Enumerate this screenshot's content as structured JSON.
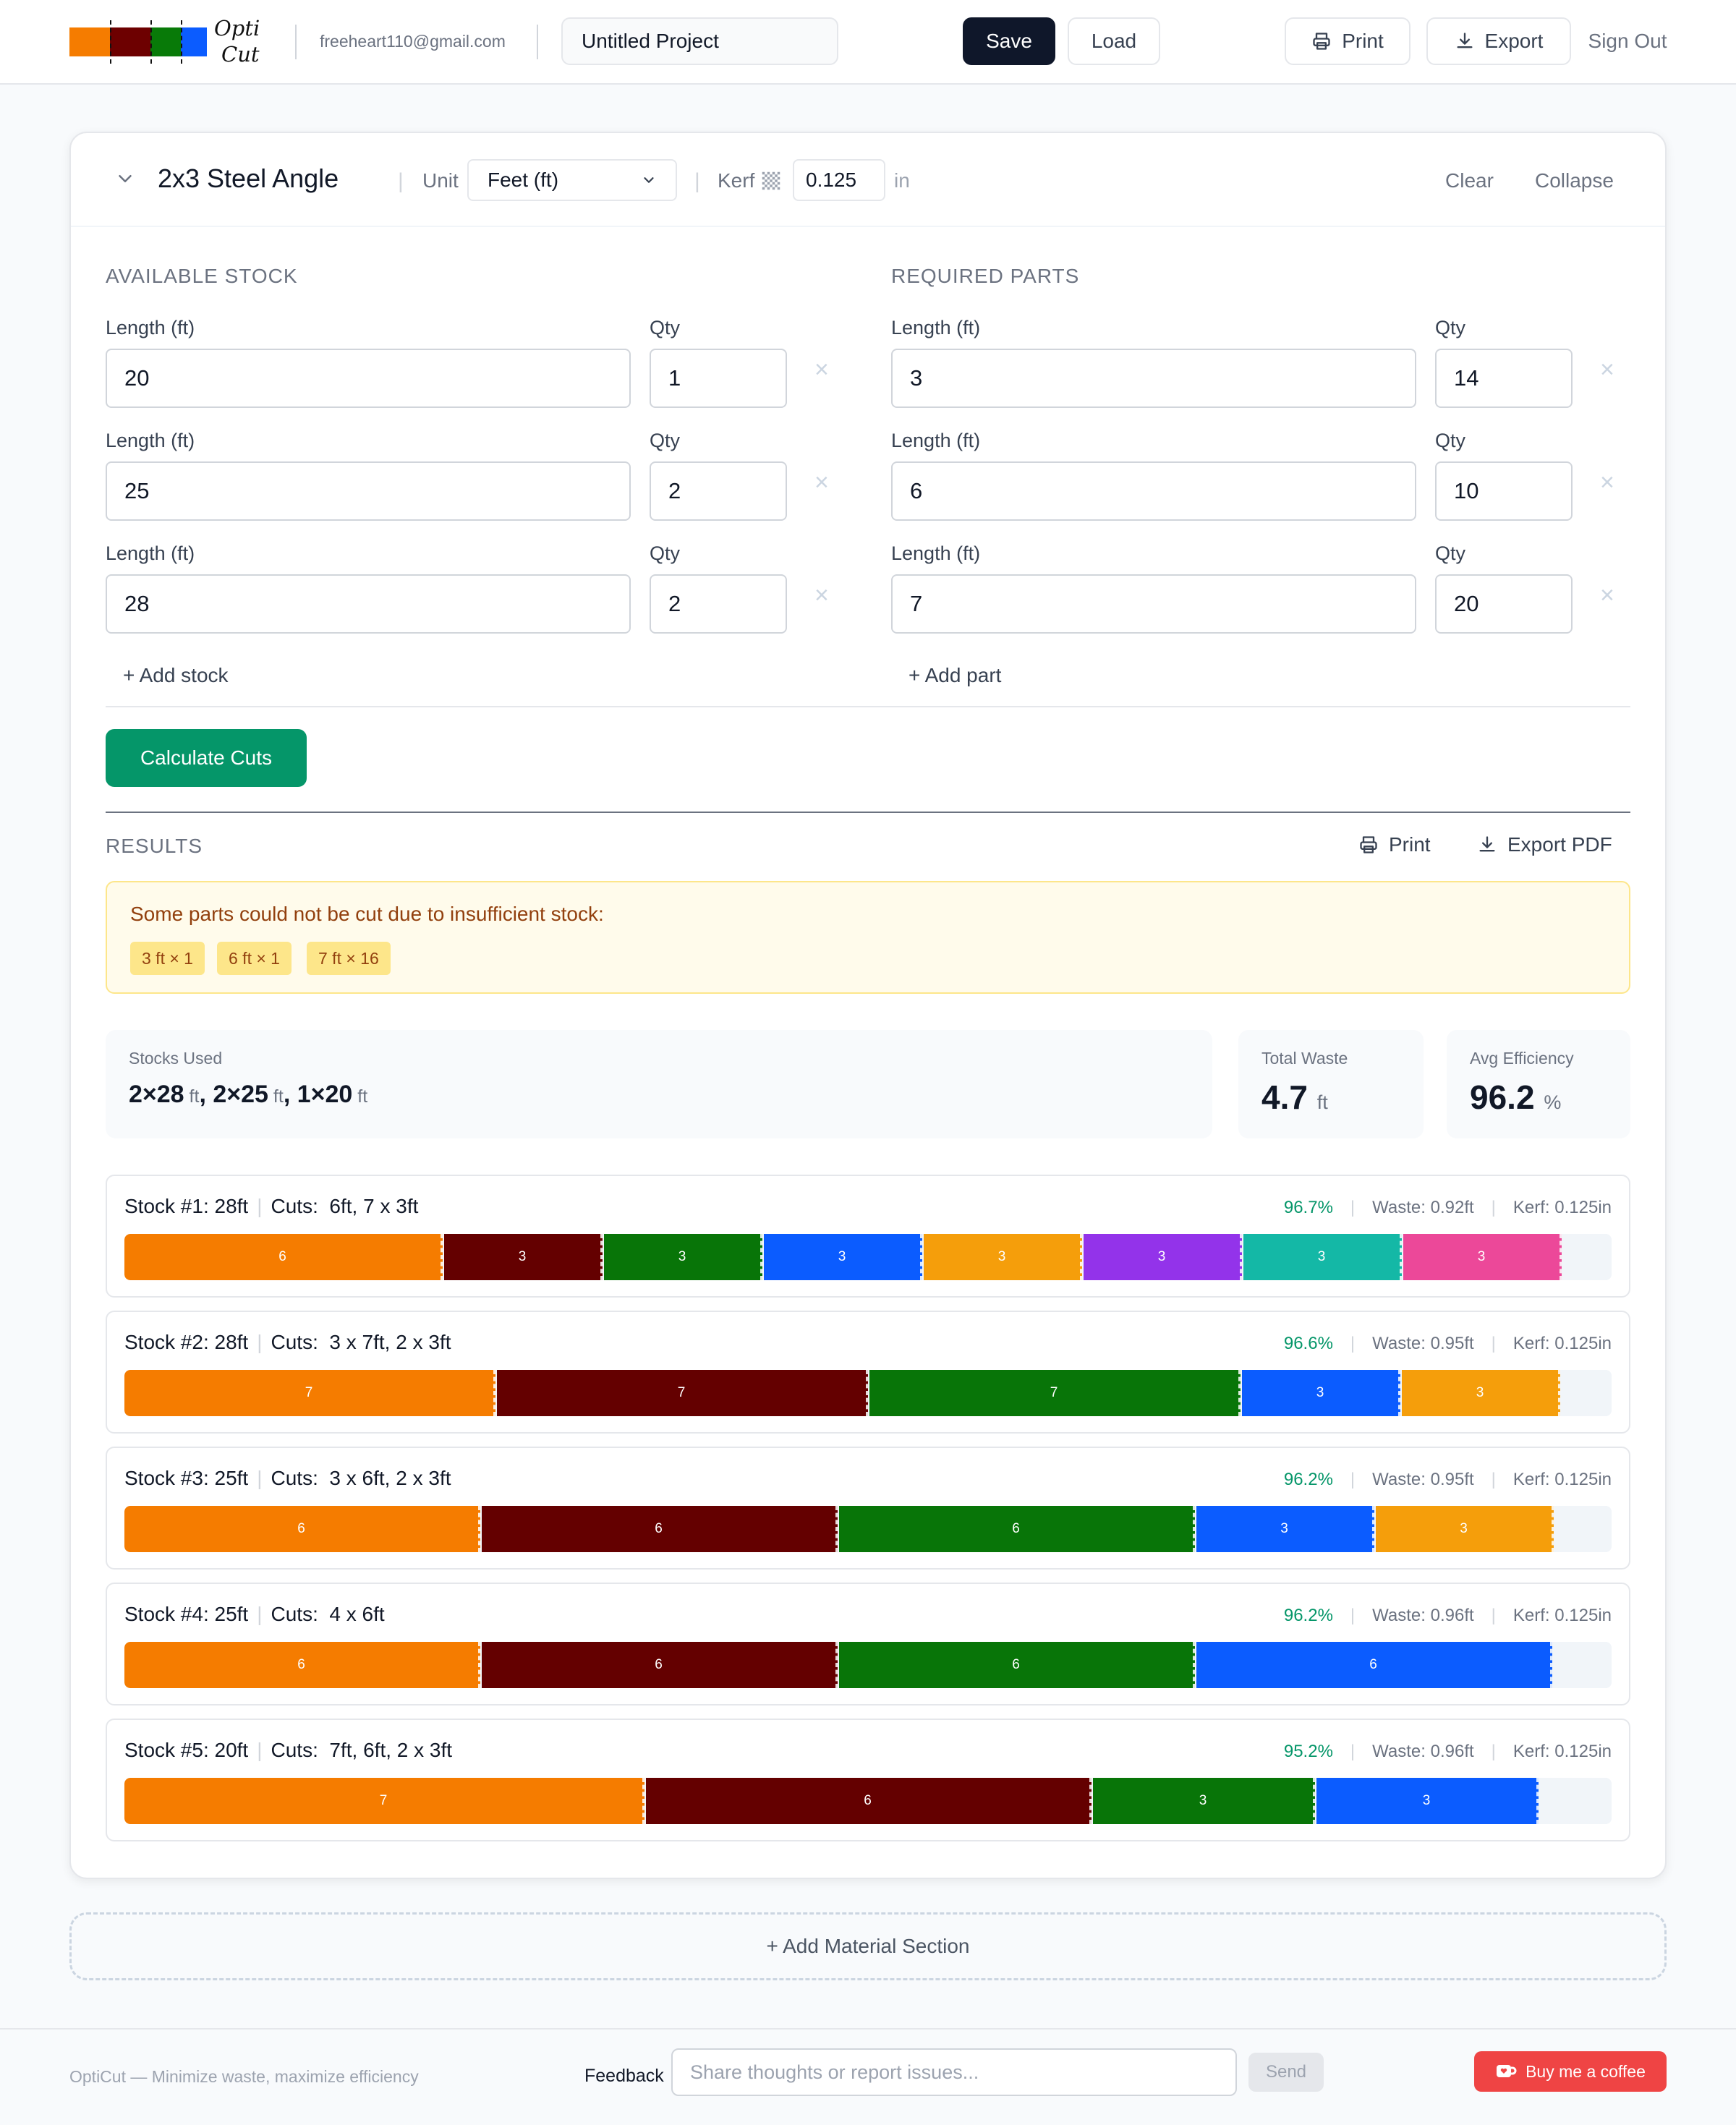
{
  "brand": {
    "name_line1": "Opti",
    "name_line2": "Cut",
    "bar_colors": [
      "#f57c00",
      "#6d0000",
      "#087a08",
      "#0b5cff"
    ]
  },
  "header": {
    "user_email": "freeheart110@gmail.com",
    "project_name": "Untitled Project",
    "save_label": "Save",
    "load_label": "Load",
    "print_label": "Print",
    "export_label": "Export",
    "signout_label": "Sign Out"
  },
  "material": {
    "title": "2x3 Steel Angle",
    "unit_label": "Unit",
    "unit_value": "Feet (ft)",
    "kerf_label": "Kerf",
    "kerf_value": "0.125",
    "kerf_unit": "in",
    "clear_label": "Clear",
    "collapse_label": "Collapse"
  },
  "stock": {
    "title": "AVAILABLE STOCK",
    "length_label": "Length (ft)",
    "qty_label": "Qty",
    "add_label": "+ Add stock",
    "items": [
      {
        "length": "20",
        "qty": "1"
      },
      {
        "length": "25",
        "qty": "2"
      },
      {
        "length": "28",
        "qty": "2"
      }
    ]
  },
  "parts": {
    "title": "REQUIRED PARTS",
    "length_label": "Length (ft)",
    "qty_label": "Qty",
    "add_label": "+ Add part",
    "items": [
      {
        "length": "3",
        "qty": "14"
      },
      {
        "length": "6",
        "qty": "10"
      },
      {
        "length": "7",
        "qty": "20"
      }
    ]
  },
  "calculate_label": "Calculate Cuts",
  "results": {
    "title": "RESULTS",
    "print_label": "Print",
    "export_pdf_label": "Export PDF",
    "warning": {
      "text": "Some parts could not be cut due to insufficient stock:",
      "chips": [
        "3 ft × 1",
        "6 ft × 1",
        "7 ft × 16"
      ]
    },
    "stats": {
      "stocks_used_label": "Stocks Used",
      "stocks_used": [
        {
          "count": "2×28",
          "unit": "ft"
        },
        {
          "count": "2×25",
          "unit": "ft"
        },
        {
          "count": "1×20",
          "unit": "ft"
        }
      ],
      "waste_label": "Total Waste",
      "waste_value": "4.7",
      "waste_unit": "ft",
      "efficiency_label": "Avg Efficiency",
      "efficiency_value": "96.2",
      "efficiency_unit": "%"
    },
    "cuts_label": "Cuts:",
    "stocks": [
      {
        "label": "Stock #1: 28ft",
        "cuts": "6ft, 7 x 3ft",
        "efficiency": "96.7%",
        "waste": "Waste: 0.92ft",
        "kerf": "Kerf: 0.125in",
        "length": 28,
        "pieces": [
          6,
          3,
          3,
          3,
          3,
          3,
          3,
          3
        ]
      },
      {
        "label": "Stock #2: 28ft",
        "cuts": "3 x 7ft, 2 x 3ft",
        "efficiency": "96.6%",
        "waste": "Waste: 0.95ft",
        "kerf": "Kerf: 0.125in",
        "length": 28,
        "pieces": [
          7,
          7,
          7,
          3,
          3
        ]
      },
      {
        "label": "Stock #3: 25ft",
        "cuts": "3 x 6ft, 2 x 3ft",
        "efficiency": "96.2%",
        "waste": "Waste: 0.95ft",
        "kerf": "Kerf: 0.125in",
        "length": 25,
        "pieces": [
          6,
          6,
          6,
          3,
          3
        ]
      },
      {
        "label": "Stock #4: 25ft",
        "cuts": "4 x 6ft",
        "efficiency": "96.2%",
        "waste": "Waste: 0.96ft",
        "kerf": "Kerf: 0.125in",
        "length": 25,
        "pieces": [
          6,
          6,
          6,
          6
        ]
      },
      {
        "label": "Stock #5: 20ft",
        "cuts": "7ft, 6ft, 2 x 3ft",
        "efficiency": "95.2%",
        "waste": "Waste: 0.96ft",
        "kerf": "Kerf: 0.125in",
        "length": 20,
        "pieces": [
          7,
          6,
          3,
          3
        ]
      }
    ],
    "piece_colors": [
      "#f57c00",
      "#640000",
      "#087508",
      "#0b5cff",
      "#f59e0b",
      "#9333ea",
      "#14b8a6",
      "#ec4899"
    ]
  },
  "add_material_label": "+ Add Material Section",
  "footer": {
    "tagline": "OptiCut — Minimize waste, maximize efficiency",
    "feedback_label": "Feedback",
    "feedback_placeholder": "Share thoughts or report issues...",
    "send_label": "Send",
    "coffee_label": "Buy me a coffee"
  }
}
